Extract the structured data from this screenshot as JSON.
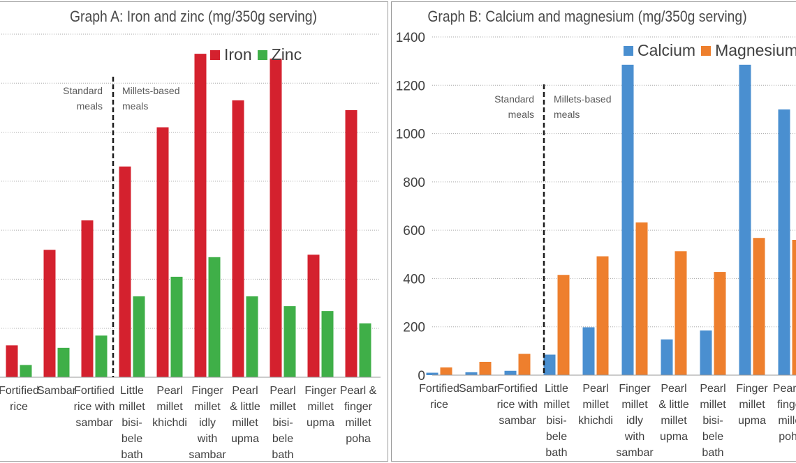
{
  "chart_data": [
    {
      "type": "bar",
      "title": "Graph A: Iron and zinc (mg/350g serving)",
      "categories": [
        "Fortified rice",
        "Sambar",
        "Fortified rice with sambar",
        "Little millet bisi-bele bath",
        "Pearl millet khichdi",
        "Finger millet idly with sambar",
        "Pearl & little millet upma",
        "Pearl millet bisi-bele bath",
        "Finger millet upma",
        "Pearl & finger millet poha"
      ],
      "category_lines": [
        [
          "Fortified",
          "rice"
        ],
        [
          "Sambar"
        ],
        [
          "Fortified",
          "rice with",
          "sambar"
        ],
        [
          "Little",
          "millet",
          "bisi-",
          "bele",
          "bath"
        ],
        [
          "Pearl",
          "millet",
          "khichdi"
        ],
        [
          "Finger",
          "millet",
          "idly",
          "with",
          "sambar"
        ],
        [
          "Pearl",
          "& little",
          "millet",
          "upma"
        ],
        [
          "Pearl",
          "millet",
          "bisi-",
          "bele",
          "bath"
        ],
        [
          "Finger",
          "millet",
          "upma"
        ],
        [
          "Pearl &",
          "finger",
          "millet",
          "poha"
        ]
      ],
      "series": [
        {
          "name": "Iron",
          "color": "#d4212e",
          "values": [
            1.3,
            5.2,
            6.4,
            8.6,
            10.2,
            13.2,
            11.3,
            13.0,
            5.0,
            10.9
          ]
        },
        {
          "name": "Zinc",
          "color": "#3faf48",
          "values": [
            0.5,
            1.2,
            1.7,
            3.3,
            4.1,
            4.9,
            3.3,
            2.9,
            2.7,
            2.2
          ]
        }
      ],
      "ylim": [
        0,
        14
      ],
      "grid": true,
      "legend_position": "top-right",
      "annotations": {
        "left": [
          "Standard",
          "meals"
        ],
        "right": [
          "Millets-based",
          "meals"
        ]
      }
    },
    {
      "type": "bar",
      "title": "Graph B: Calcium and magnesium (mg/350g serving)",
      "categories": [
        "Fortified rice",
        "Sambar",
        "Fortified rice with sambar",
        "Little millet bisi-bele bath",
        "Pearl millet khichdi",
        "Finger millet idly with sambar",
        "Pearl & little millet upma",
        "Pearl millet bisi-bele bath",
        "Finger millet upma",
        "Pearl & finger millet poha"
      ],
      "category_lines": [
        [
          "Fortified",
          "rice"
        ],
        [
          "Sambar"
        ],
        [
          "Fortified",
          "rice with",
          "sambar"
        ],
        [
          "Little",
          "millet",
          "bisi-",
          "bele",
          "bath"
        ],
        [
          "Pearl",
          "millet",
          "khichdi"
        ],
        [
          "Finger",
          "millet",
          "idly",
          "with",
          "sambar"
        ],
        [
          "Pearl",
          "& little",
          "millet",
          "upma"
        ],
        [
          "Pearl",
          "millet",
          "bisi-",
          "bele",
          "bath"
        ],
        [
          "Finger",
          "millet",
          "upma"
        ],
        [
          "Pearl &",
          "finger",
          "millet",
          "poha"
        ]
      ],
      "series": [
        {
          "name": "Calcium",
          "color": "#4a8fd0",
          "values": [
            10,
            12,
            18,
            85,
            198,
            1285,
            148,
            185,
            1285,
            1100
          ]
        },
        {
          "name": "Magnesium",
          "color": "#ee7f2d",
          "values": [
            32,
            55,
            88,
            415,
            492,
            632,
            513,
            427,
            568,
            560
          ]
        }
      ],
      "ylim": [
        0,
        1400
      ],
      "yticks": [
        0,
        200,
        400,
        600,
        800,
        1000,
        1200,
        1400
      ],
      "grid": true,
      "legend_position": "top-right",
      "annotations": {
        "left": [
          "Standard",
          "meals"
        ],
        "right": [
          "Millets-based",
          "meals"
        ]
      }
    }
  ]
}
